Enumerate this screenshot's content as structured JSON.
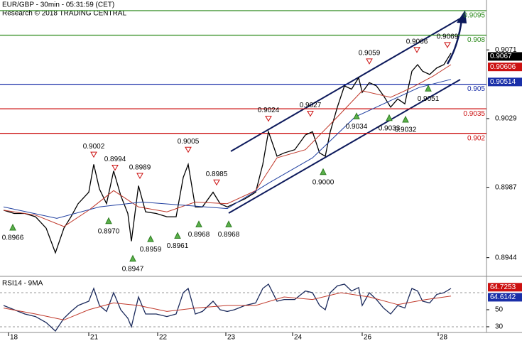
{
  "chart_data": [
    {
      "type": "line",
      "title": "EUR/GBP - 30min - 05:31:59 (CET)",
      "subtitle": "Research © 2018 TRADING CENTRAL",
      "xlim": [
        0,
        342.5
      ],
      "ylim": [
        0.8933,
        0.91015
      ],
      "yticks": [
        0.9071,
        0.9029,
        0.8987,
        0.8944
      ],
      "x": [
        2.5,
        10,
        17.5,
        25,
        32.5,
        39,
        45,
        50,
        55,
        62.5,
        66,
        70,
        75,
        80,
        85,
        90,
        92.5,
        97.5,
        102.5,
        110,
        117.5,
        124,
        129,
        132.5,
        137.5,
        142.5,
        150,
        155,
        160,
        165,
        172.5,
        180,
        185,
        189,
        195,
        200,
        207.5,
        215,
        220,
        225,
        229,
        232.5,
        237.5,
        242.5,
        247.5,
        252.5,
        255,
        260,
        265,
        270,
        275,
        280,
        285,
        290,
        294,
        297.5,
        302.5,
        307.5,
        312.5,
        317.5
      ],
      "series": [
        {
          "color": "#000000",
          "values": [
            0.8973,
            0.8971,
            0.8971,
            0.8969,
            0.8962,
            0.8947,
            0.8962,
            0.8969,
            0.8977,
            0.8984,
            0.9001,
            0.8986,
            0.8977,
            0.8997,
            0.8982,
            0.8971,
            0.8954,
            0.8988,
            0.8972,
            0.8971,
            0.8969,
            0.8969,
            0.8993,
            0.9001,
            0.8975,
            0.8975,
            0.8984,
            0.8977,
            0.8975,
            0.8977,
            0.898,
            0.8984,
            0.9001,
            0.9021,
            0.9006,
            0.9008,
            0.901,
            0.9019,
            0.9021,
            0.9008,
            0.9006,
            0.9021,
            0.9036,
            0.9049,
            0.9047,
            0.9054,
            0.9045,
            0.9051,
            0.9049,
            0.9043,
            0.9036,
            0.9041,
            0.9038,
            0.9058,
            0.9062,
            0.9058,
            0.9056,
            0.906,
            0.9062,
            0.9069
          ]
        },
        {
          "color": "#c0392b",
          "x": [
            2.5,
            25,
            45,
            62.5,
            80,
            97.5,
            117.5,
            137.5,
            160,
            180,
            195,
            215,
            237.5,
            255,
            275,
            290,
            305,
            317.5
          ],
          "values": [
            0.8973,
            0.897,
            0.8963,
            0.8973,
            0.8985,
            0.8975,
            0.8972,
            0.8978,
            0.8977,
            0.8985,
            0.9005,
            0.901,
            0.903,
            0.9046,
            0.9042,
            0.9048,
            0.9055,
            0.9062
          ]
        },
        {
          "color": "#1f3fa0",
          "x": [
            2.5,
            40,
            70,
            100,
            130,
            160,
            190,
            220,
            250,
            275,
            295,
            317.5
          ],
          "values": [
            0.8975,
            0.8968,
            0.8975,
            0.8978,
            0.8976,
            0.8974,
            0.899,
            0.9005,
            0.903,
            0.904,
            0.9048,
            0.9053
          ]
        }
      ],
      "levels": [
        {
          "value": 0.9095,
          "color": "#2e8b1e"
        },
        {
          "value": 0.908,
          "color": "#2e8b1e"
        },
        {
          "value": 0.905,
          "color": "#1a2fa8"
        },
        {
          "value": 0.9035,
          "color": "#cc1111"
        },
        {
          "value": 0.902,
          "color": "#cc1111"
        }
      ],
      "price_tags": [
        {
          "value": 0.9067,
          "color": "#000000"
        },
        {
          "value": 0.90606,
          "color": "#cc1111"
        },
        {
          "value": 0.90514,
          "color": "#1a2fa8"
        }
      ],
      "annotations": [
        {
          "kind": "high",
          "x": 66,
          "value": 0.9002,
          "label": "0.9002"
        },
        {
          "kind": "high",
          "x": 81,
          "value": 0.8994,
          "label": "0.8994"
        },
        {
          "kind": "high",
          "x": 98.5,
          "value": 0.8989,
          "label": "0.8989"
        },
        {
          "kind": "high",
          "x": 132.5,
          "value": 0.9005,
          "label": "0.9005"
        },
        {
          "kind": "high",
          "x": 152.5,
          "value": 0.8985,
          "label": "0.8985"
        },
        {
          "kind": "high",
          "x": 189,
          "value": 0.9024,
          "label": "0.9024"
        },
        {
          "kind": "high",
          "x": 218.5,
          "value": 0.9027,
          "label": "0.9027"
        },
        {
          "kind": "high",
          "x": 260,
          "value": 0.9059,
          "label": "0.9059"
        },
        {
          "kind": "high",
          "x": 293.5,
          "value": 0.9066,
          "label": "0.9066"
        },
        {
          "kind": "high",
          "x": 315,
          "value": 0.9069,
          "label": "0.9069"
        },
        {
          "kind": "low",
          "x": 9,
          "value": 0.8966,
          "label": "0.8966"
        },
        {
          "kind": "low",
          "x": 76.5,
          "value": 0.897,
          "label": "0.8970"
        },
        {
          "kind": "low",
          "x": 93.5,
          "value": 0.8947,
          "label": "0.8947"
        },
        {
          "kind": "low",
          "x": 106,
          "value": 0.8959,
          "label": "0.8959"
        },
        {
          "kind": "low",
          "x": 125,
          "value": 0.8961,
          "label": "0.8961"
        },
        {
          "kind": "low",
          "x": 140,
          "value": 0.8968,
          "label": "0.8968"
        },
        {
          "kind": "low",
          "x": 161,
          "value": 0.8968,
          "label": "0.8968"
        },
        {
          "kind": "low",
          "x": 227.5,
          "value": 0.9,
          "label": "0.9000"
        },
        {
          "kind": "low",
          "x": 251,
          "value": 0.9034,
          "label": "0.9034"
        },
        {
          "kind": "low",
          "x": 274,
          "value": 0.9033,
          "label": "0.9033"
        },
        {
          "kind": "low",
          "x": 285.5,
          "value": 0.9032,
          "label": "0.9032"
        },
        {
          "kind": "low",
          "x": 301.5,
          "value": 0.9051,
          "label": "0.9051"
        }
      ]
    },
    {
      "type": "line",
      "title": "RSI14 - 9MA",
      "xlim": [
        0,
        342.5
      ],
      "ylim": [
        23.3,
        88.3
      ],
      "yticks": [
        50,
        30
      ],
      "levels": [
        70,
        30
      ],
      "xticks": [
        {
          "value": 6,
          "label": "18"
        },
        {
          "value": 62.5,
          "label": "21"
        },
        {
          "value": 111,
          "label": "22"
        },
        {
          "value": 159,
          "label": "23"
        },
        {
          "value": 206,
          "label": "24"
        },
        {
          "value": 255,
          "label": "26"
        },
        {
          "value": 308.5,
          "label": "28"
        }
      ],
      "x": [
        2.5,
        10,
        17.5,
        25,
        32.5,
        39,
        45,
        50,
        55,
        62.5,
        66,
        70,
        75,
        80,
        85,
        90,
        92.5,
        97.5,
        102.5,
        110,
        117.5,
        124,
        129,
        132.5,
        137.5,
        142.5,
        150,
        155,
        160,
        165,
        172.5,
        180,
        185,
        189,
        195,
        200,
        207.5,
        215,
        220,
        225,
        229,
        232.5,
        237.5,
        242.5,
        247.5,
        252.5,
        255,
        260,
        265,
        270,
        275,
        280,
        285,
        290,
        294,
        297.5,
        302.5,
        307.5,
        312.5,
        317.5
      ],
      "series": [
        {
          "color": "#1b2a5c",
          "values": [
            55,
            50,
            45,
            42,
            35,
            25,
            40,
            48,
            55,
            60,
            75,
            55,
            48,
            70,
            50,
            40,
            30,
            65,
            45,
            45,
            42,
            45,
            70,
            75,
            45,
            48,
            60,
            50,
            48,
            50,
            55,
            58,
            75,
            80,
            60,
            62,
            62,
            72,
            70,
            55,
            50,
            70,
            78,
            80,
            72,
            76,
            55,
            70,
            62,
            52,
            45,
            55,
            52,
            75,
            72,
            60,
            58,
            68,
            70,
            75
          ]
        },
        {
          "color": "#c0392b",
          "x": [
            2.5,
            25,
            45,
            62.5,
            80,
            97.5,
            117.5,
            137.5,
            160,
            180,
            200,
            220,
            240,
            260,
            280,
            300,
            317.5
          ],
          "values": [
            52,
            45,
            38,
            50,
            58,
            55,
            48,
            52,
            55,
            55,
            65,
            62,
            70,
            65,
            56,
            62,
            66
          ]
        }
      ],
      "price_tags": [
        {
          "value": 64.7253,
          "color": "#cc1111"
        },
        {
          "value": 64.6142,
          "color": "#1a2fa8"
        }
      ]
    }
  ]
}
